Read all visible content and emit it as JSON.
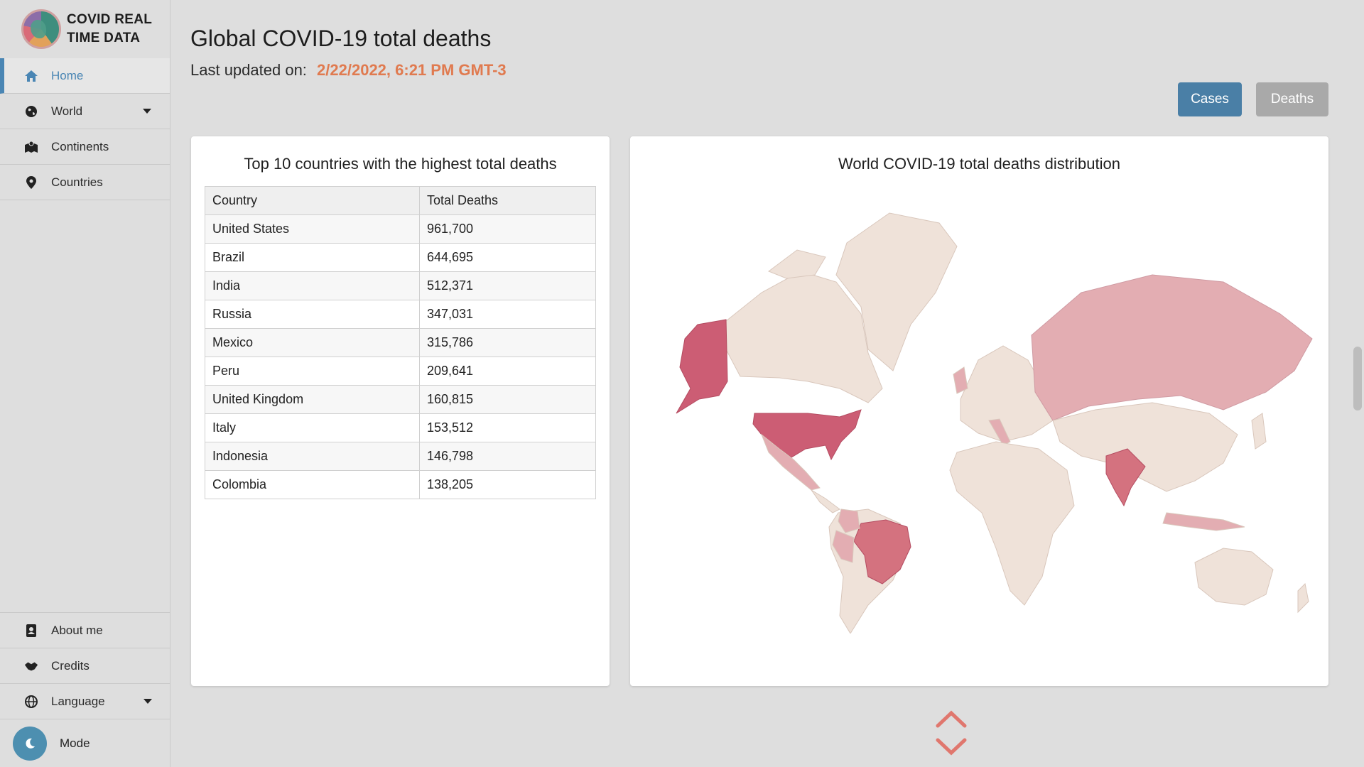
{
  "brand": {
    "line1": "COVID REAL",
    "line2": "TIME DATA"
  },
  "nav": {
    "home": "Home",
    "world": "World",
    "continents": "Continents",
    "countries": "Countries",
    "about": "About me",
    "credits": "Credits",
    "language": "Language",
    "mode": "Mode"
  },
  "header": {
    "title": "Global COVID-19 total deaths",
    "updated_label": "Last updated on:",
    "updated_value": "2/22/2022, 6:21 PM GMT-3"
  },
  "buttons": {
    "cases": "Cases",
    "deaths": "Deaths"
  },
  "table_card": {
    "title": "Top 10 countries with the highest total deaths",
    "columns": [
      "Country",
      "Total Deaths"
    ],
    "rows": [
      [
        "United States",
        "961,700"
      ],
      [
        "Brazil",
        "644,695"
      ],
      [
        "India",
        "512,371"
      ],
      [
        "Russia",
        "347,031"
      ],
      [
        "Mexico",
        "315,786"
      ],
      [
        "Peru",
        "209,641"
      ],
      [
        "United Kingdom",
        "160,815"
      ],
      [
        "Italy",
        "153,512"
      ],
      [
        "Indonesia",
        "146,798"
      ],
      [
        "Colombia",
        "138,205"
      ]
    ]
  },
  "map_card": {
    "title": "World COVID-19 total deaths distribution"
  },
  "colors": {
    "accent_blue": "#4a7fa6",
    "accent_orange": "#e07a4f",
    "map_low": "#efe2d9",
    "map_mid": "#e3adb2",
    "map_high": "#cc5d74"
  }
}
